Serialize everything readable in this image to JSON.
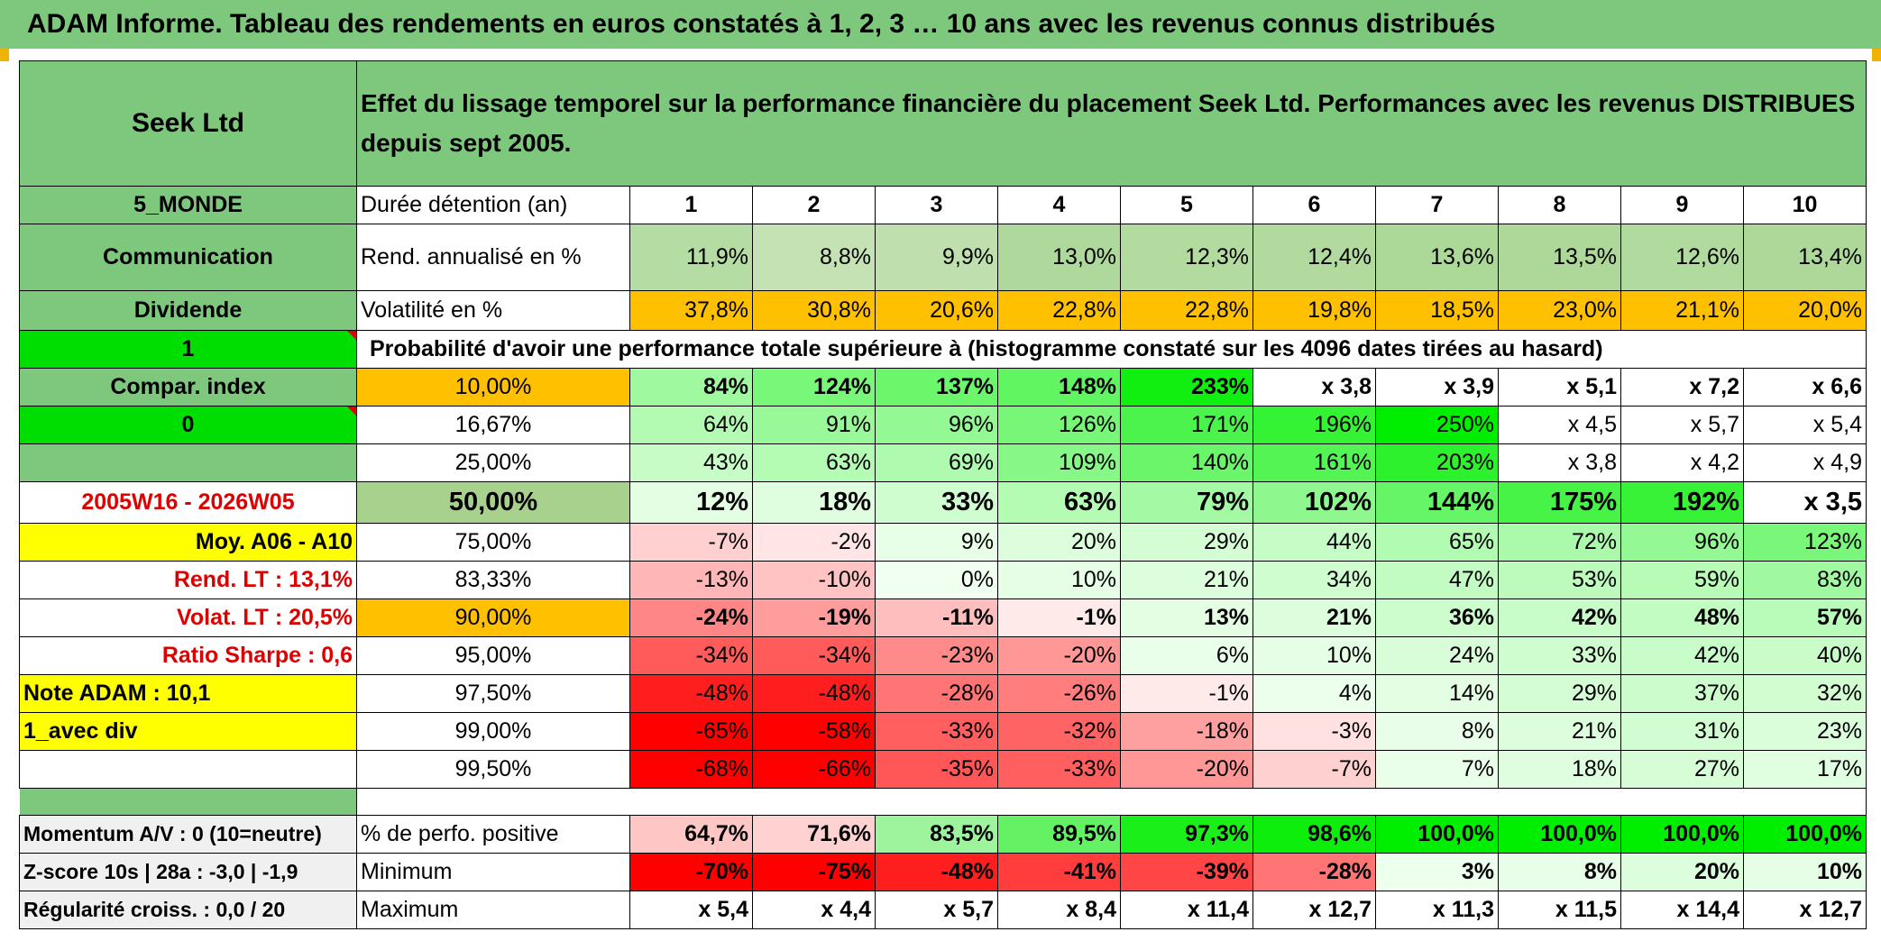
{
  "title": "ADAM Informe. Tableau des rendements en euros constatés à 1, 2, 3 … 10 ans avec les revenus connus distribués",
  "header": {
    "company": "Seek Ltd",
    "description": "Effet du lissage temporel sur la performance financière du placement Seek Ltd. Performances avec les revenus DISTRIBUES depuis sept 2005."
  },
  "left_labels": {
    "zone": "5_MONDE",
    "sector": "Communication",
    "dividend": "Dividende",
    "one": "1",
    "compar": "Compar. index",
    "zero": "0",
    "period": "2005W16 - 2026W05",
    "moy": "Moy. A06 - A10",
    "rend_lt": "Rend. LT :   13,1%",
    "volat_lt": "Volat. LT :   20,5%",
    "sharpe": "Ratio Sharpe :    0,6",
    "note": "Note ADAM : 10,1",
    "avec_div": "1_avec div",
    "momentum": "Momentum A/V : 0 (10=neutre)",
    "zscore": "Z-score 10s | 28a : -3,0 | -1,9",
    "regularite": "Régularité croiss. : 0,0 / 20"
  },
  "row_labels": {
    "duree": "Durée détention (an)",
    "rend": "Rend. annualisé en %",
    "volat": "Volatilité en %",
    "prob": "Probabilité d'avoir une performance totale supérieure à (histogramme constaté sur les 4096 dates tirées au hasard)",
    "positive": "% de perfo. positive",
    "minimum": "Minimum",
    "maximum": "Maximum"
  },
  "years": [
    "1",
    "2",
    "3",
    "4",
    "5",
    "6",
    "7",
    "8",
    "9",
    "10"
  ],
  "rend": [
    "11,9%",
    "8,8%",
    "9,9%",
    "13,0%",
    "12,3%",
    "12,4%",
    "13,6%",
    "13,5%",
    "12,6%",
    "13,4%"
  ],
  "volat": [
    "37,8%",
    "30,8%",
    "20,6%",
    "22,8%",
    "22,8%",
    "19,8%",
    "18,5%",
    "23,0%",
    "21,1%",
    "20,0%"
  ],
  "percentiles": [
    {
      "p": "10,00%",
      "v": [
        "84%",
        "124%",
        "137%",
        "148%",
        "233%",
        "x 3,8",
        "x 3,9",
        "x 5,1",
        "x 7,2",
        "x 6,6"
      ]
    },
    {
      "p": "16,67%",
      "v": [
        "64%",
        "91%",
        "96%",
        "126%",
        "171%",
        "196%",
        "250%",
        "x 4,5",
        "x 5,7",
        "x 5,4"
      ]
    },
    {
      "p": "25,00%",
      "v": [
        "43%",
        "63%",
        "69%",
        "109%",
        "140%",
        "161%",
        "203%",
        "x 3,8",
        "x 4,2",
        "x 4,9"
      ]
    },
    {
      "p": "50,00%",
      "v": [
        "12%",
        "18%",
        "33%",
        "63%",
        "79%",
        "102%",
        "144%",
        "175%",
        "192%",
        "x 3,5"
      ]
    },
    {
      "p": "75,00%",
      "v": [
        "-7%",
        "-2%",
        "9%",
        "20%",
        "29%",
        "44%",
        "65%",
        "72%",
        "96%",
        "123%"
      ]
    },
    {
      "p": "83,33%",
      "v": [
        "-13%",
        "-10%",
        "0%",
        "10%",
        "21%",
        "34%",
        "47%",
        "53%",
        "59%",
        "83%"
      ]
    },
    {
      "p": "90,00%",
      "v": [
        "-24%",
        "-19%",
        "-11%",
        "-1%",
        "13%",
        "21%",
        "36%",
        "42%",
        "48%",
        "57%"
      ]
    },
    {
      "p": "95,00%",
      "v": [
        "-34%",
        "-34%",
        "-23%",
        "-20%",
        "6%",
        "10%",
        "24%",
        "33%",
        "42%",
        "40%"
      ]
    },
    {
      "p": "97,50%",
      "v": [
        "-48%",
        "-48%",
        "-28%",
        "-26%",
        "-1%",
        "4%",
        "14%",
        "29%",
        "37%",
        "32%"
      ]
    },
    {
      "p": "99,00%",
      "v": [
        "-65%",
        "-58%",
        "-33%",
        "-32%",
        "-18%",
        "-3%",
        "8%",
        "21%",
        "31%",
        "23%"
      ]
    },
    {
      "p": "99,50%",
      "v": [
        "-68%",
        "-66%",
        "-35%",
        "-33%",
        "-20%",
        "-7%",
        "7%",
        "18%",
        "27%",
        "17%"
      ]
    }
  ],
  "positive": [
    "64,7%",
    "71,6%",
    "83,5%",
    "89,5%",
    "97,3%",
    "98,6%",
    "100,0%",
    "100,0%",
    "100,0%",
    "100,0%"
  ],
  "minimum": [
    "-70%",
    "-75%",
    "-48%",
    "-41%",
    "-39%",
    "-28%",
    "3%",
    "8%",
    "20%",
    "10%"
  ],
  "maximum": [
    "x 5,4",
    "x 4,4",
    "x 5,7",
    "x 8,4",
    "x 11,4",
    "x 12,7",
    "x 11,3",
    "x 11,5",
    "x 14,4",
    "x 12,7"
  ],
  "colors": {
    "header_green": "#7ec87e",
    "bright_green": "#00dd00",
    "orange": "#ffc000",
    "yellow": "#ffff00",
    "label_red": "#dd0000"
  }
}
